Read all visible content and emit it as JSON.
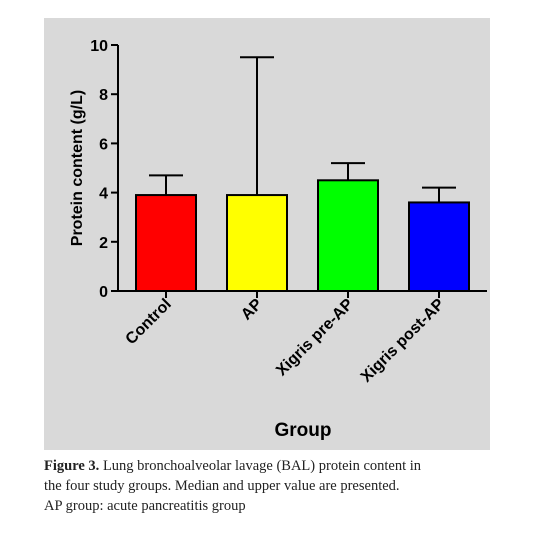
{
  "chart_data": {
    "type": "bar",
    "x_label": "Group",
    "y_label": "Protein content (g/L)",
    "categories": [
      "Control",
      "AP",
      "Xigris pre-AP",
      "Xigris post-AP"
    ],
    "values": [
      3.9,
      3.9,
      4.5,
      3.6
    ],
    "upper": [
      4.7,
      9.5,
      5.2,
      4.2
    ],
    "colors": [
      "#ff0000",
      "#ffff00",
      "#00ff00",
      "#0000ff"
    ],
    "ylim": [
      0,
      10
    ],
    "yticks": [
      0,
      2,
      4,
      6,
      8,
      10
    ],
    "background": "#d9d9d9"
  },
  "caption": {
    "label": "Figure 3.",
    "lines": [
      "Lung bronchoalveolar lavage (BAL) protein content in",
      "the four study groups. Median and upper value are presented.",
      "AP group: acute pancreatitis group"
    ]
  }
}
